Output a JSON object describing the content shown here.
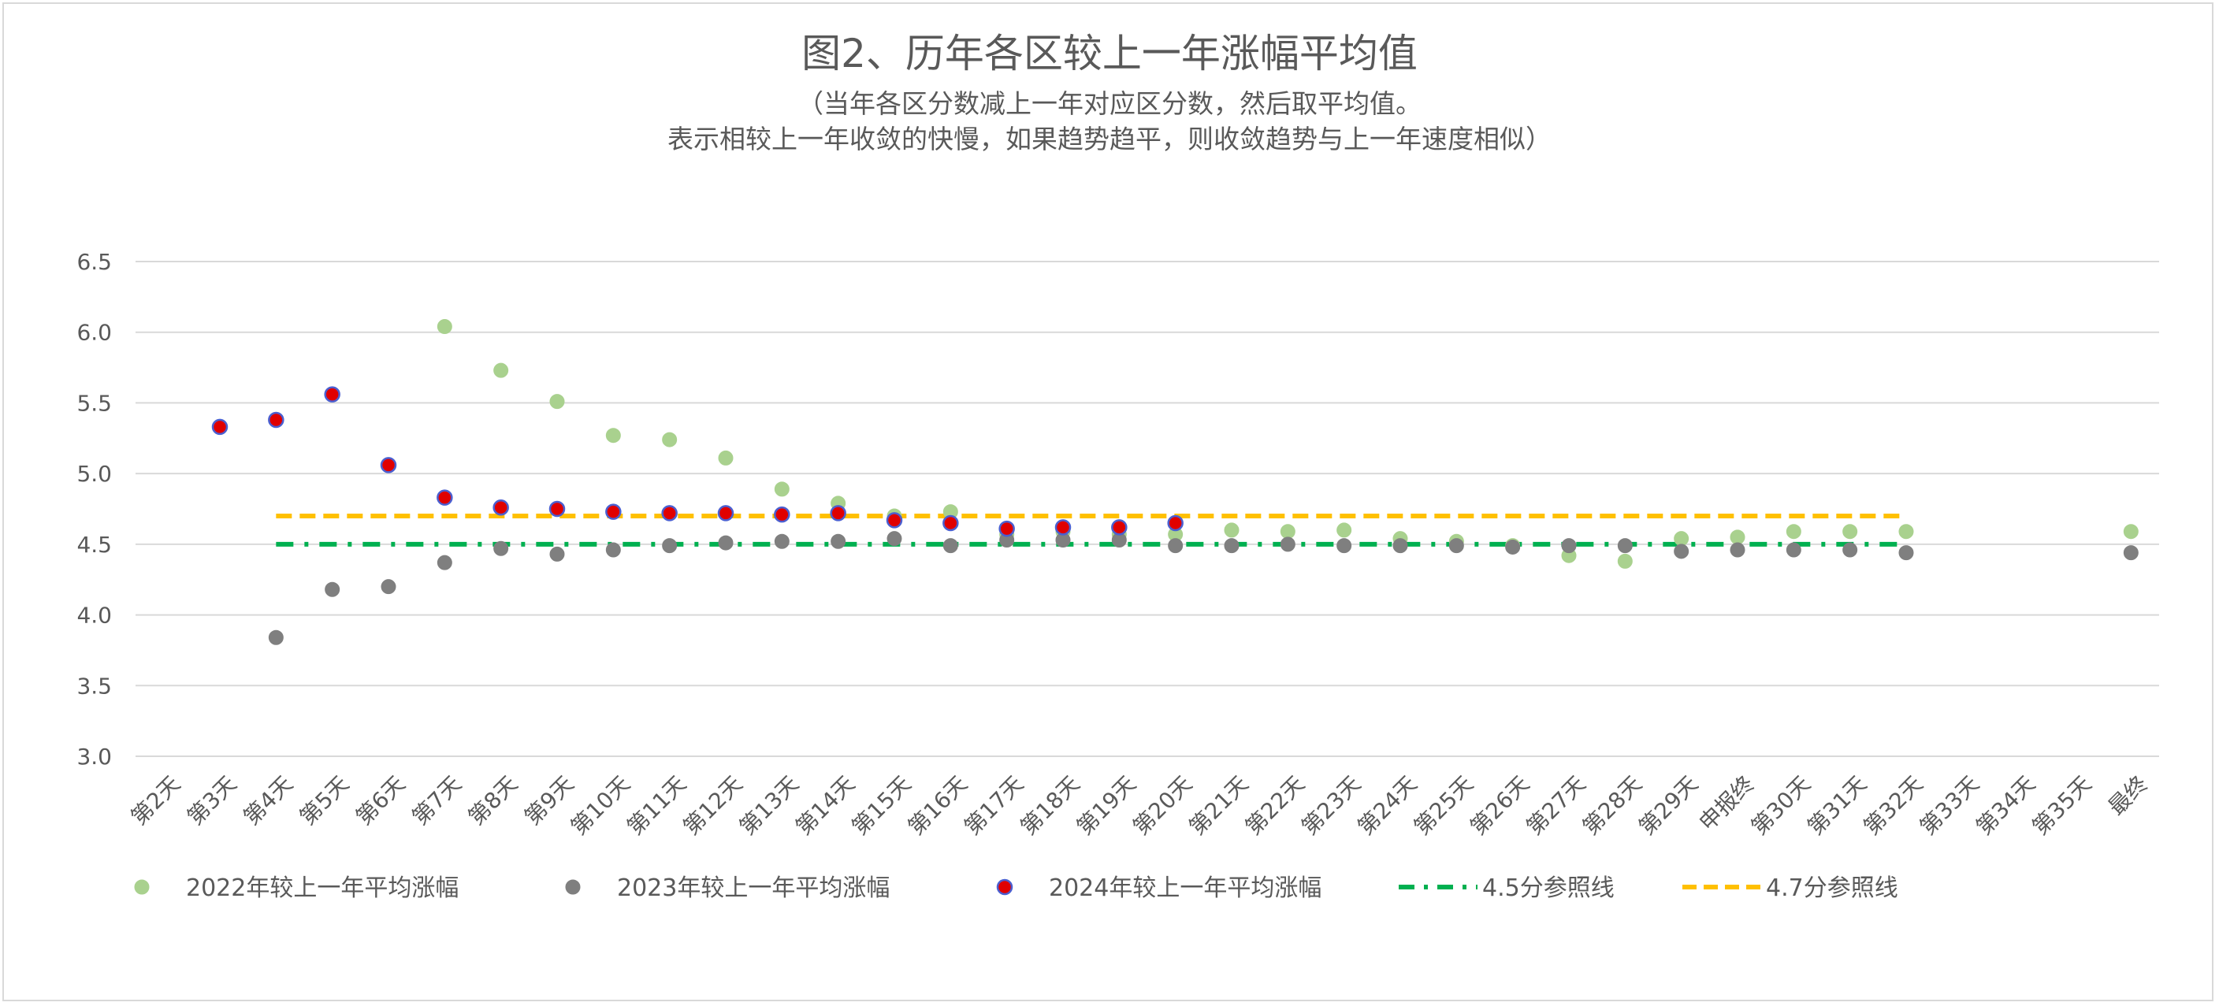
{
  "chart_data": {
    "type": "scatter",
    "title": "图2、历年各区较上一年涨幅平均值",
    "subtitle_lines": [
      "（当年各区分数减上一年对应区分数，然后取平均值。",
      "表示相较上一年收敛的快慢，如果趋势趋平，则收敛趋势与上一年速度相似）"
    ],
    "categories": [
      "第2天",
      "第3天",
      "第4天",
      "第5天",
      "第6天",
      "第7天",
      "第8天",
      "第9天",
      "第10天",
      "第11天",
      "第12天",
      "第13天",
      "第14天",
      "第15天",
      "第16天",
      "第17天",
      "第18天",
      "第19天",
      "第20天",
      "第21天",
      "第22天",
      "第23天",
      "第24天",
      "第25天",
      "第26天",
      "第27天",
      "第28天",
      "第29天",
      "申报终",
      "第30天",
      "第31天",
      "第32天",
      "第33天",
      "第34天",
      "第35天",
      "最终"
    ],
    "ylim": [
      3.0,
      6.5
    ],
    "yticks": [
      "3.0",
      "3.5",
      "4.0",
      "4.5",
      "5.0",
      "5.5",
      "6.0",
      "6.5"
    ],
    "grid": true,
    "legend_position": "bottom",
    "series": [
      {
        "name": "2022年较上一年平均涨幅",
        "kind": "marker",
        "color": "#a9d18e",
        "edge": "#a9d18e",
        "values": [
          null,
          null,
          null,
          null,
          null,
          6.04,
          5.73,
          5.51,
          5.27,
          5.24,
          5.11,
          4.89,
          4.79,
          4.7,
          4.73,
          4.57,
          4.59,
          4.57,
          4.57,
          4.6,
          4.59,
          4.6,
          4.54,
          4.52,
          4.49,
          4.42,
          4.38,
          4.54,
          4.55,
          4.59,
          4.59,
          4.59,
          null,
          null,
          null,
          4.59
        ]
      },
      {
        "name": "2023年较上一年平均涨幅",
        "kind": "marker",
        "color": "#7f7f7f",
        "edge": "#7f7f7f",
        "values": [
          null,
          null,
          3.84,
          4.18,
          4.2,
          4.37,
          4.47,
          4.43,
          4.46,
          4.49,
          4.51,
          4.52,
          4.52,
          4.54,
          4.49,
          4.53,
          4.53,
          4.53,
          4.49,
          4.49,
          4.5,
          4.49,
          4.49,
          4.49,
          4.48,
          4.49,
          4.49,
          4.45,
          4.46,
          4.46,
          4.46,
          4.44,
          null,
          null,
          null,
          4.44
        ]
      },
      {
        "name": "2024年较上一年平均涨幅",
        "kind": "marker",
        "color": "#e00000",
        "edge": "#4b5fd0",
        "values": [
          null,
          5.33,
          5.38,
          5.56,
          5.06,
          4.83,
          4.76,
          4.75,
          4.73,
          4.72,
          4.72,
          4.71,
          4.72,
          4.67,
          4.65,
          4.61,
          4.62,
          4.62,
          4.65,
          null,
          null,
          null,
          null,
          null,
          null,
          null,
          null,
          null,
          null,
          null,
          null,
          null,
          null,
          null,
          null,
          null
        ]
      },
      {
        "name": "4.5分参照线",
        "kind": "line",
        "style": "dashdot",
        "color": "#00b050",
        "value": 4.5,
        "from_index": 2,
        "to_index": 31
      },
      {
        "name": "4.7分参照线",
        "kind": "line",
        "style": "dashed",
        "color": "#ffc000",
        "value": 4.7,
        "from_index": 2,
        "to_index": 31
      }
    ]
  }
}
